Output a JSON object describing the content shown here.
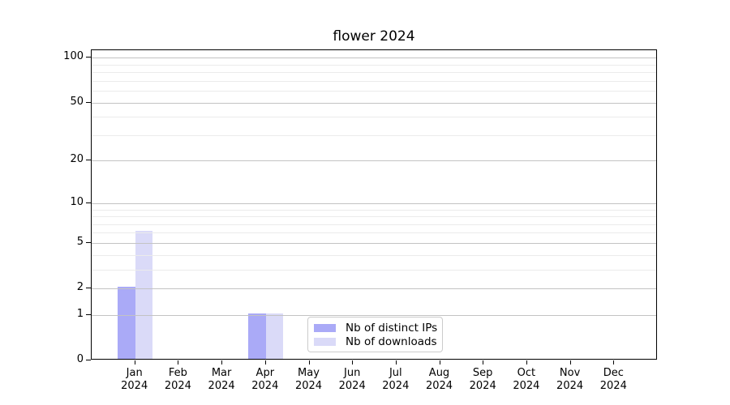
{
  "chart_data": {
    "type": "bar",
    "title": "flower 2024",
    "categories": [
      "Jan 2024",
      "Feb 2024",
      "Mar 2024",
      "Apr 2024",
      "May 2024",
      "Jun 2024",
      "Jul 2024",
      "Aug 2024",
      "Sep 2024",
      "Oct 2024",
      "Nov 2024",
      "Dec 2024"
    ],
    "months": [
      "Jan",
      "Feb",
      "Mar",
      "Apr",
      "May",
      "Jun",
      "Jul",
      "Aug",
      "Sep",
      "Oct",
      "Nov",
      "Dec"
    ],
    "year_line": "2024",
    "series": [
      {
        "name": "Nb of distinct IPs",
        "color": "#aaaaf7",
        "values": [
          2,
          0,
          0,
          1,
          0,
          0,
          0,
          0,
          0,
          0,
          0,
          0
        ]
      },
      {
        "name": "Nb of downloads",
        "color": "#dadaf8",
        "values": [
          6,
          0,
          0,
          1,
          0,
          0,
          0,
          0,
          0,
          0,
          0,
          0
        ]
      }
    ],
    "yscale": "log1p",
    "ylim": [
      0,
      112
    ],
    "yticks": [
      0,
      1,
      2,
      5,
      10,
      20,
      50,
      100
    ],
    "yticks_minor": [
      3,
      4,
      6,
      7,
      8,
      9,
      30,
      40,
      60,
      70,
      80,
      90
    ],
    "grid": {
      "enabled": true,
      "major_color": "#c3c3c3",
      "minor_color": "#ebebeb",
      "drawn_over_bars": true
    },
    "legend": {
      "entries": [
        "Nb of distinct IPs",
        "Nb of downloads"
      ],
      "position": "lower center"
    }
  },
  "colors": {
    "background": "#ffffff",
    "spine": "#000000",
    "text": "#000000",
    "series_distinct_ips": "#aaaaf7",
    "series_downloads": "#dadaf8"
  }
}
